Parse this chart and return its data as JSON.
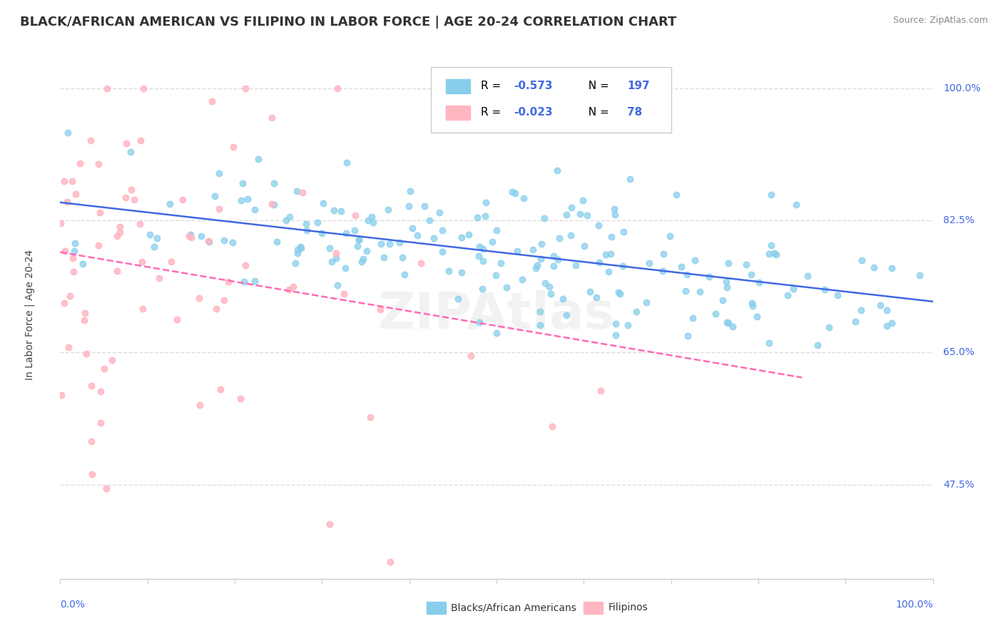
{
  "title": "BLACK/AFRICAN AMERICAN VS FILIPINO IN LABOR FORCE | AGE 20-24 CORRELATION CHART",
  "source": "Source: ZipAtlas.com",
  "ylabel": "In Labor Force | Age 20-24",
  "ytick_vals": [
    0.475,
    0.65,
    0.825,
    1.0
  ],
  "ytick_labels": [
    "47.5%",
    "65.0%",
    "82.5%",
    "100.0%"
  ],
  "xlim": [
    0.0,
    1.0
  ],
  "ylim": [
    0.35,
    1.05
  ],
  "legend_blue_r": "-0.573",
  "legend_blue_n": "197",
  "legend_pink_r": "-0.023",
  "legend_pink_n": "78",
  "blue_scatter_color": "#87CEEB",
  "pink_scatter_color": "#FFB6C1",
  "blue_line_color": "#4169E1",
  "pink_line_color": "#FF69B4",
  "axis_label_color": "#4169E1",
  "title_color": "#333333",
  "source_color": "#888888",
  "grid_color": "#DDDDDD",
  "background_color": "#FFFFFF",
  "watermark_text": "ZIPAtlas",
  "watermark_color": "#CCCCCC",
  "bottom_legend_blue_label": "Blacks/African Americans",
  "bottom_legend_pink_label": "Filipinos"
}
